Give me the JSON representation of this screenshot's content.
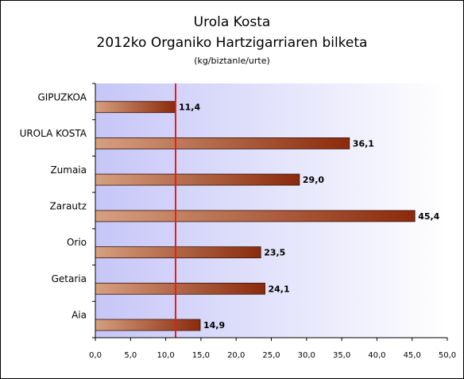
{
  "chart_data": {
    "type": "bar",
    "orientation": "horizontal",
    "title": "Urola Kosta",
    "subtitle": "2012ko Organiko Hartzigarriaren bilketa",
    "unit_label": "(kg/biztanle/urte)",
    "categories": [
      "GIPUZKOA",
      "UROLA KOSTA",
      "Zumaia",
      "Zarautz",
      "Orio",
      "Getaria",
      "Aia"
    ],
    "values": [
      11.4,
      36.1,
      29.0,
      45.4,
      23.5,
      24.1,
      14.9
    ],
    "data_labels": [
      "11,4",
      "36,1",
      "29,0",
      "45,4",
      "23,5",
      "24,1",
      "14,9"
    ],
    "reference_line": {
      "value": 11.4,
      "color": "#e0201c"
    },
    "xlim": [
      0,
      50
    ],
    "x_ticks": [
      0,
      5,
      10,
      15,
      20,
      25,
      30,
      35,
      40,
      45,
      50
    ],
    "x_tick_labels": [
      "0,0",
      "5,0",
      "10,0",
      "15,0",
      "20,0",
      "25,0",
      "30,0",
      "35,0",
      "40,0",
      "45,0",
      "50,0"
    ],
    "grid": false,
    "legend": "none",
    "colors": {
      "bar_light": "#d6a080",
      "bar_dark": "#8b2a0c",
      "plot_bg_left": "#c6c6f8",
      "plot_bg_right": "#ffffff",
      "axis": "#000000"
    }
  }
}
